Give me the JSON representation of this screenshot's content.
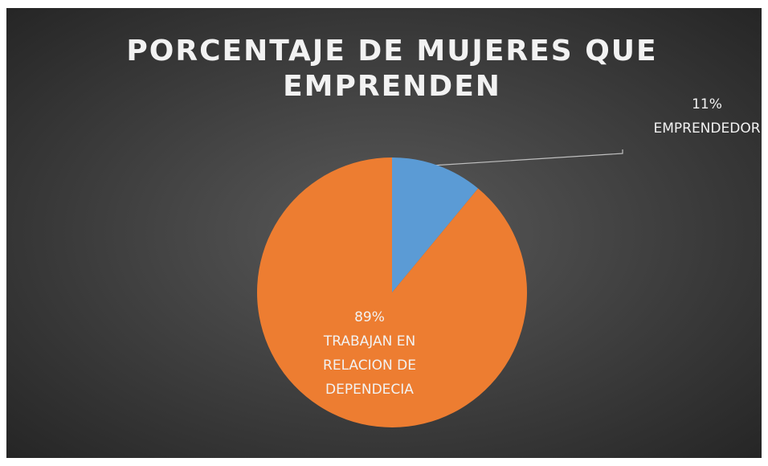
{
  "chart_data": {
    "type": "pie",
    "title": "PORCENTAJE DE MUJERES QUE EMPRENDEN",
    "categories": [
      "EMPRENDEDOR",
      "TRABAJAN EN RELACION DE DEPENDECIA"
    ],
    "values": [
      11,
      89
    ],
    "value_labels": [
      "11%",
      "89%"
    ],
    "colors": [
      "#5b9bd5",
      "#ed7d31"
    ]
  }
}
